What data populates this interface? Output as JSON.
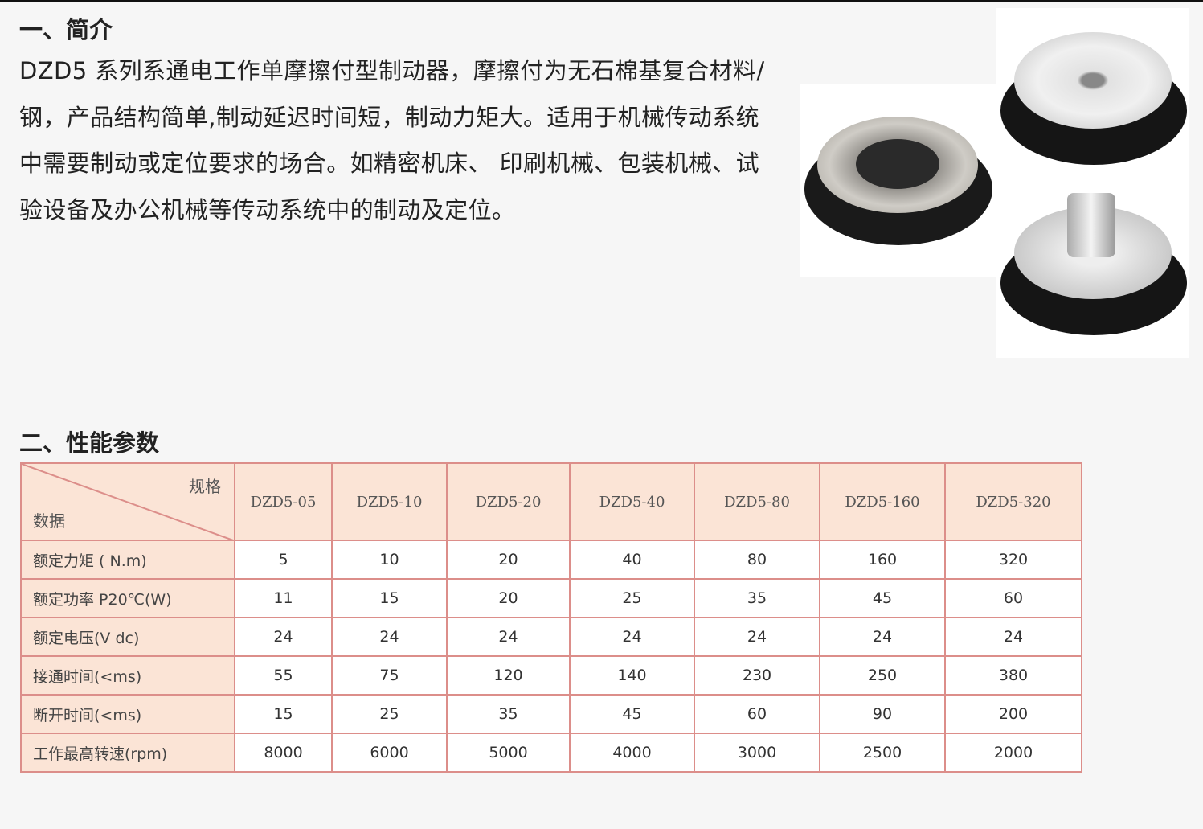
{
  "section1": {
    "heading": "一、简介",
    "lines": [
      "DZD5 系列系通电工作单摩擦付型制动器，摩擦付为无石棉基复合材料/",
      "钢，产品结构简单,制动延迟时间短，制动力矩大。适用于机械传动系统",
      "中需要制动或定位要求的场合。如精密机床、 印刷机械、包装机械、试",
      "验设备及办公机械等传动系统中的制动及定位。"
    ]
  },
  "section2": {
    "heading": "二、性能参数",
    "table": {
      "corner_top": "规格",
      "corner_bottom": "数据",
      "models": [
        "DZD5-05",
        "DZD5-10",
        "DZD5-20",
        "DZD5-40",
        "DZD5-80",
        "DZD5-160",
        "DZD5-320"
      ],
      "rows": [
        {
          "label": "额定力矩 ( N.m)",
          "values": [
            "5",
            "10",
            "20",
            "40",
            "80",
            "160",
            "320"
          ]
        },
        {
          "label": "额定功率 P20℃(W)",
          "values": [
            "11",
            "15",
            "20",
            "25",
            "35",
            "45",
            "60"
          ]
        },
        {
          "label": "额定电压(V dc)",
          "values": [
            "24",
            "24",
            "24",
            "24",
            "24",
            "24",
            "24"
          ]
        },
        {
          "label": "接通时间(<ms)",
          "values": [
            "55",
            "75",
            "120",
            "140",
            "230",
            "250",
            "380"
          ]
        },
        {
          "label": "断开时间(<ms)",
          "values": [
            "15",
            "25",
            "35",
            "45",
            "60",
            "90",
            "200"
          ]
        },
        {
          "label": "工作最高转速(rpm)",
          "values": [
            "8000",
            "6000",
            "5000",
            "4000",
            "3000",
            "2500",
            "2000"
          ]
        }
      ]
    }
  },
  "colors": {
    "header_bg": "#fbe4d6",
    "border": "#dc8e8a"
  }
}
